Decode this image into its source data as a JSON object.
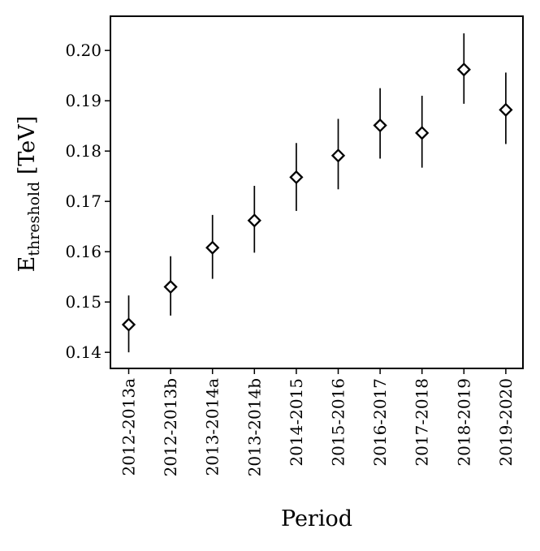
{
  "chart_data": {
    "type": "scatter",
    "xlabel": "Period",
    "ylabel_main": "E",
    "ylabel_sub": "threshold",
    "ylabel_unit": " [TeV]",
    "ylim": [
      0.1368,
      0.2068
    ],
    "yticks": [
      "0.14",
      "0.15",
      "0.16",
      "0.17",
      "0.18",
      "0.19",
      "0.20"
    ],
    "grid": false,
    "legend": "none",
    "marker": "open-diamond",
    "colors": {
      "marker": "#000000",
      "errorbar": "#000000",
      "axes": "#000000"
    },
    "categories": [
      "2012-2013a",
      "2012-2013b",
      "2013-2014a",
      "2013-2014b",
      "2014-2015",
      "2015-2016",
      "2016-2017",
      "2017-2018",
      "2018-2019",
      "2019-2020"
    ],
    "values": [
      0.1455,
      0.153,
      0.1608,
      0.1662,
      0.1748,
      0.1791,
      0.1851,
      0.1836,
      0.1962,
      0.1882
    ],
    "err_low": [
      0.14,
      0.1473,
      0.1546,
      0.1598,
      0.1681,
      0.1724,
      0.1785,
      0.1767,
      0.1894,
      0.1814
    ],
    "err_high": [
      0.1513,
      0.1591,
      0.1673,
      0.1731,
      0.1816,
      0.1864,
      0.1925,
      0.191,
      0.2034,
      0.1956
    ]
  }
}
